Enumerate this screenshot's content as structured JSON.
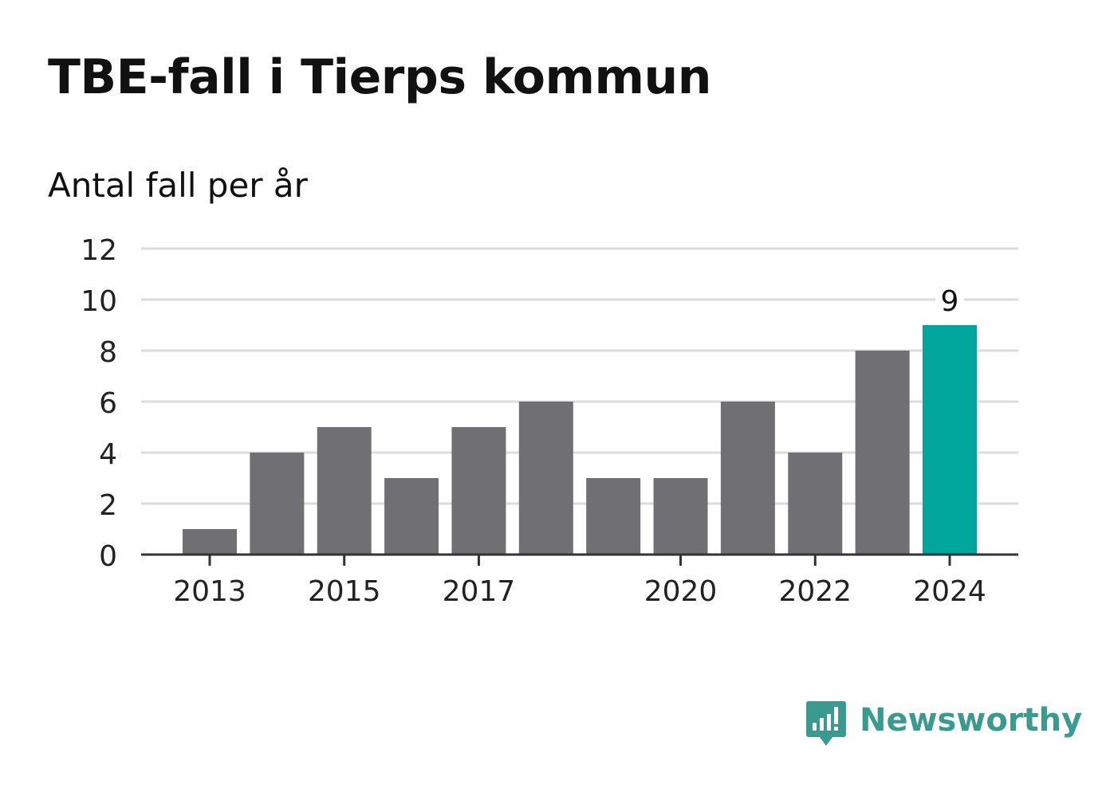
{
  "title": "TBE-fall i Tierps kommun",
  "subtitle": "Antal fall per år",
  "brand": {
    "name": "Newsworthy",
    "logo_icon": "newsworthy-logo-icon",
    "color": "#3a9a90"
  },
  "colors": {
    "bar": "#706f74",
    "highlight": "#00a59b",
    "grid": "#dcdcdc",
    "axis": "#333333",
    "text": "#111111"
  },
  "chart_data": {
    "type": "bar",
    "categories": [
      "2013",
      "2014",
      "2015",
      "2016",
      "2017",
      "2018",
      "2019",
      "2020",
      "2021",
      "2022",
      "2023",
      "2024"
    ],
    "values": [
      1,
      4,
      5,
      3,
      5,
      6,
      3,
      3,
      6,
      4,
      8,
      9
    ],
    "x_tick_labels": [
      "2013",
      "2015",
      "2017",
      "2020",
      "2022",
      "2024"
    ],
    "y_ticks": [
      0,
      2,
      4,
      6,
      8,
      10,
      12
    ],
    "ylim": [
      0,
      12
    ],
    "highlight_category": "2024",
    "data_labels": [
      {
        "category": "2024",
        "text": "9"
      }
    ],
    "grid": true,
    "legend": "none",
    "xlabel": "",
    "ylabel": ""
  }
}
